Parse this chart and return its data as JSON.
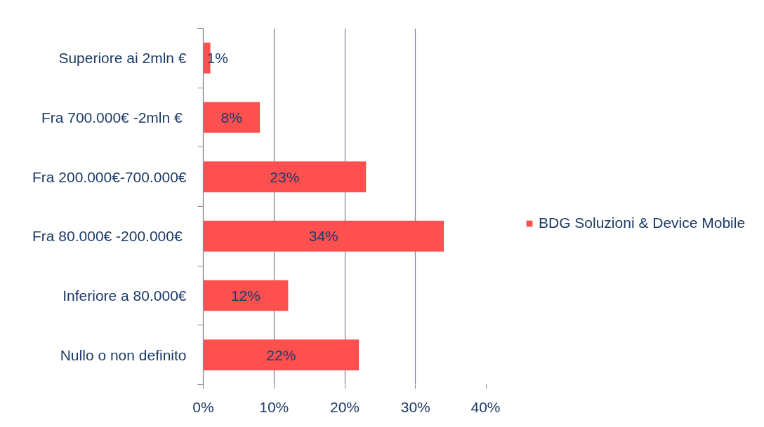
{
  "chart_data": {
    "type": "bar",
    "orientation": "horizontal",
    "categories": [
      "Superiore ai 2mln €",
      "Fra 700.000€  -2mln €",
      "Fra 200.000€-700.000€",
      "Fra 80.000€  -200.000€",
      "Inferiore a 80.000€",
      "Nullo o non definito"
    ],
    "series": [
      {
        "name": "BDG Soluzioni & Device Mobile",
        "color": "#ff5050",
        "values": [
          1,
          8,
          23,
          34,
          12,
          22
        ],
        "value_labels": [
          "1%",
          "8%",
          "23%",
          "34%",
          "12%",
          "22%"
        ]
      }
    ],
    "xlim": [
      0,
      40
    ],
    "xticks": [
      {
        "value": 0,
        "label": "0%"
      },
      {
        "value": 10,
        "label": "10%"
      },
      {
        "value": 20,
        "label": "20%"
      },
      {
        "value": 30,
        "label": "30%"
      },
      {
        "value": 40,
        "label": "40%"
      }
    ],
    "grid": "x",
    "legend": "right"
  }
}
